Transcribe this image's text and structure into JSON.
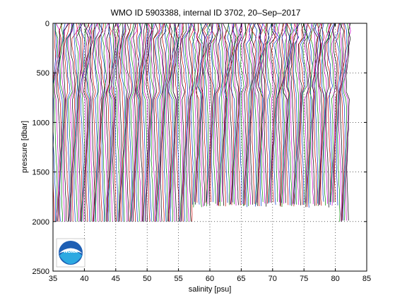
{
  "chart_data": {
    "type": "line",
    "title": "WMO ID 5903388, internal ID 3702, 20–Sep–2017",
    "xlabel": "salinity [psu]",
    "ylabel": "pressure [dbar]",
    "xlim": [
      35,
      85
    ],
    "ylim": [
      0,
      2500
    ],
    "y_reversed": true,
    "x_ticks": [
      35,
      40,
      45,
      50,
      55,
      60,
      65,
      70,
      75,
      80,
      85
    ],
    "y_ticks": [
      0,
      500,
      1000,
      1500,
      2000,
      2500
    ],
    "grid": true,
    "profile_offset_start": 35.0,
    "profile_offset_step": 0.22,
    "profile_count": 215,
    "series_colors": [
      "#cc0000",
      "#0033cc",
      "#008800",
      "#cc00cc",
      "#000000"
    ],
    "depth_note": "Profiles stacked with increasing offset; most reach 2000 dbar, a group near 57–80 psu end near 1800 dbar.",
    "logo": "noaa-logo"
  }
}
